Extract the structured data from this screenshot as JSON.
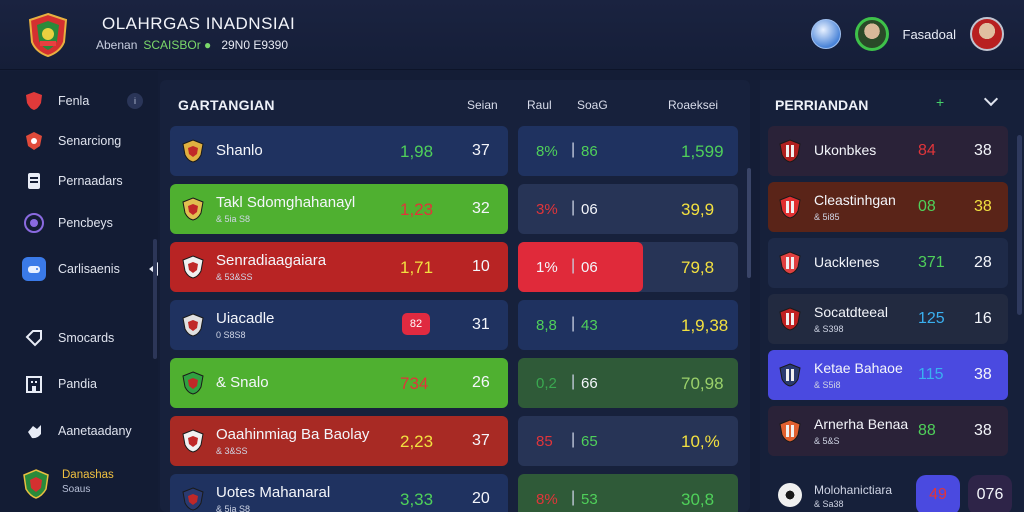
{
  "header": {
    "title": "OLAHRGAS INADNSIAI",
    "subtitle_left": "Abenan",
    "subtitle_green": "SCAISBOr ●",
    "subtitle_num": "29N0 E9390",
    "user_name": "Fasadoal",
    "icons": [
      "crest-logo",
      "ball-icon",
      "avatar",
      "avatar"
    ]
  },
  "sidebar": {
    "items": [
      {
        "label": "Fenla",
        "icon": "shield-icon",
        "color": "#e03a3a"
      },
      {
        "label": "Senarciong",
        "icon": "badge-icon",
        "color": "#e04a3a"
      },
      {
        "label": "Pernaadars",
        "icon": "document-icon",
        "color": "#e8ecf6"
      },
      {
        "label": "Pencbeys",
        "icon": "circle-icon",
        "color": "#8a6ae0"
      },
      {
        "label": "Carlisaenis",
        "icon": "controller-icon",
        "color": "#3a7ae8"
      },
      {
        "label": "Smocards",
        "icon": "tag-icon",
        "color": "#e8ecf6"
      },
      {
        "label": "Pandia",
        "icon": "building-icon",
        "color": "#e8ecf6"
      },
      {
        "label": "Aanetaadany",
        "icon": "hand-icon",
        "color": "#e8ecf6"
      },
      {
        "label": "Danashas",
        "sub": "Soaus",
        "icon": "crest-icon",
        "color": "#3ec24a"
      }
    ]
  },
  "main": {
    "title": "GARTANGIAN",
    "columns": [
      "Seian",
      "Raul",
      "SoaG",
      "Roaeksei"
    ],
    "rows": [
      {
        "team": "Shanlo",
        "sub": "",
        "score": "1,98",
        "score_color": "#4fd05a",
        "sr": "37",
        "pct": "8%",
        "pct_color": "#4fd05a",
        "pts": "86",
        "pts_color": "#4fd05a",
        "val": "1,599",
        "val_color": "#4fd05a",
        "left_bg": "#1f3260",
        "right_bg": "#1f3260",
        "badge": "#e0b040"
      },
      {
        "team": "Takl Sdomghahanayl",
        "sub": "& 5ia S8",
        "score": "1,23",
        "score_color": "#e0353a",
        "sr": "32",
        "pct": "3%",
        "pct_color": "#e0353a",
        "pts": "06",
        "pts_color": "#f4f6fb",
        "val": "39,9",
        "val_color": "#f2e040",
        "left_bg": "#4fb030",
        "right_bg": "#273456",
        "badge": "#e0c050"
      },
      {
        "team": "Senradiaagaiara",
        "sub": "& 53&SS",
        "score": "1,71",
        "score_color": "#f2e040",
        "sr": "10",
        "pct": "1%",
        "pct_color": "#f4f6fb",
        "pts": "06",
        "pts_color": "#f4f6fb",
        "val": "79,8",
        "val_color": "#f2e040",
        "left_bg": "#b82424",
        "right_bg": "#273456",
        "badge": "#f0f0f0"
      },
      {
        "team": "Uiacadle",
        "sub": "0 S8S8",
        "score": "82",
        "score_color": "#ffffff",
        "sr": "31",
        "pct": "8,8",
        "pct_color": "#4fd05a",
        "pts": "43",
        "pts_color": "#4fd05a",
        "val": "1,9,38",
        "val_color": "#f2e040",
        "left_bg": "#1f3260",
        "right_bg": "#1f3260",
        "badge": "#e0e0e0"
      },
      {
        "team": "& Snalo",
        "sub": "",
        "score": "734",
        "score_color": "#e0353a",
        "sr": "26",
        "pct": "0,2",
        "pct_color": "#3aa850",
        "pts": "66",
        "pts_color": "#f4f6fb",
        "val": "70,98",
        "val_color": "#9ad06a",
        "left_bg": "#4fb030",
        "right_bg": "#2f5a38",
        "badge": "#30a040"
      },
      {
        "team": "Oaahinmiag Ba Baolay",
        "sub": "& 3&SS",
        "score": "2,23",
        "score_color": "#f2e040",
        "sr": "37",
        "pct": "85",
        "pct_color": "#e0353a",
        "pts": "65",
        "pts_color": "#4fd05a",
        "val": "10,%",
        "val_color": "#f2e040",
        "left_bg": "#a82a24",
        "right_bg": "#273456",
        "badge": "#f0f0f0"
      },
      {
        "team": "Uotes Mahanaral",
        "sub": "& 5ia S8",
        "score": "3,33",
        "score_color": "#4fd05a",
        "sr": "20",
        "pct": "8%",
        "pct_color": "#e0353a",
        "pts": "53",
        "pts_color": "#4fd05a",
        "val": "30,8",
        "val_color": "#4fd05a",
        "left_bg": "#1f3260",
        "right_bg": "#2f5a38",
        "badge": "#2a3a70"
      }
    ]
  },
  "right_panel": {
    "title": "PERRIANDAN",
    "rows": [
      {
        "team": "Ukonbkes",
        "sub": "",
        "s1": "84",
        "s1_color": "#e0353a",
        "s2": "38",
        "bg": "#2a2238",
        "badge": "#b02020"
      },
      {
        "team": "Cleastinhgan",
        "sub": "& 5i85",
        "s1": "08",
        "s1_color": "#4fd05a",
        "s2": "38",
        "s2_color": "#f2e040",
        "bg": "#5a2418",
        "badge": "#e03030"
      },
      {
        "team": "Uacklenes",
        "sub": "",
        "s1": "371",
        "s1_color": "#4fd05a",
        "s2": "28",
        "bg": "#1e2a48",
        "badge": "#e04040"
      },
      {
        "team": "Socatdteeal",
        "sub": "& S398",
        "s1": "125",
        "s1_color": "#3ab0f0",
        "s2": "16",
        "bg": "#222a40",
        "badge": "#c02020"
      },
      {
        "team": "Ketae Bahaoe",
        "sub": "& S5i8",
        "s1": "115",
        "s1_color": "#3ab0f0",
        "s2": "38",
        "bg": "#4a4ae0",
        "badge": "#2a3a70"
      },
      {
        "team": "Arnerha Benaa",
        "sub": "& 5&S",
        "s1": "88",
        "s1_color": "#4fd05a",
        "s2": "38",
        "bg": "#2a2238",
        "badge": "#e06030"
      },
      {
        "team": "Molohanictiara",
        "sub": "& Sa38",
        "s1": "49",
        "s1_color": "#e0353a",
        "s2": "076",
        "bg": "#16203a",
        "badge": "#f0f0f0"
      }
    ]
  }
}
